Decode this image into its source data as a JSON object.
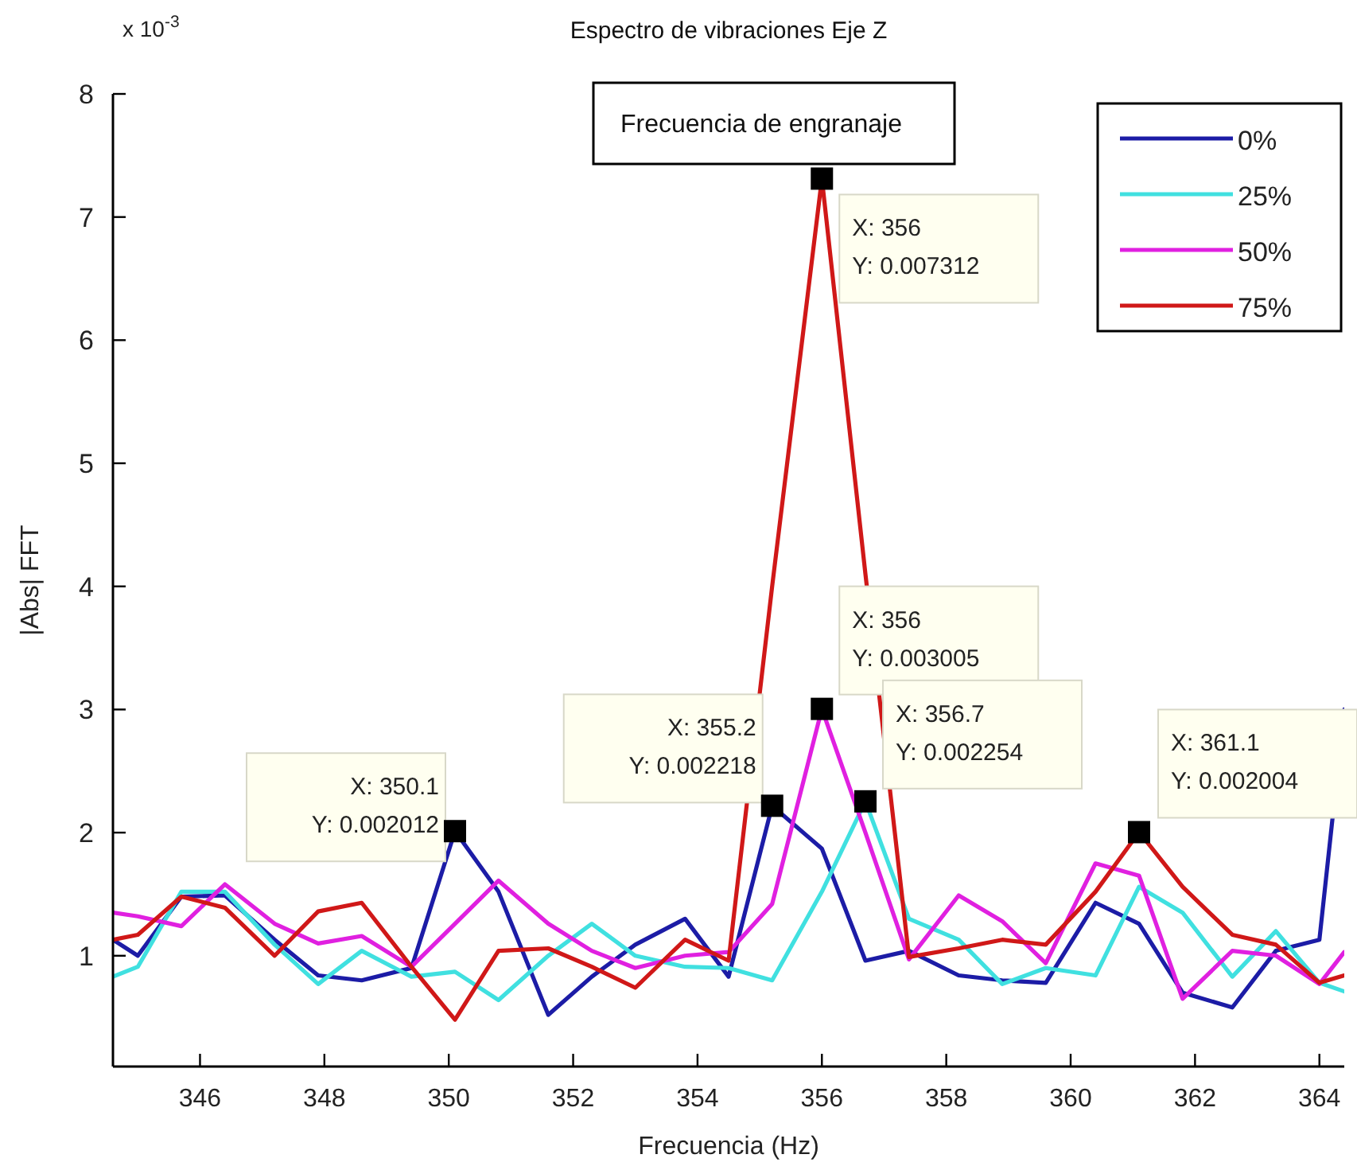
{
  "chart_data": {
    "type": "line",
    "title": "Espectro de vibraciones Eje Z",
    "xlabel": "Frecuencia (Hz)",
    "ylabel": "|Abs| FFT",
    "x": [
      344.6,
      345.0,
      345.7,
      346.4,
      347.2,
      347.9,
      348.6,
      349.4,
      350.1,
      350.8,
      351.6,
      352.3,
      353.0,
      353.8,
      354.5,
      355.2,
      356.0,
      356.7,
      357.4,
      358.2,
      358.9,
      359.6,
      360.4,
      361.1,
      361.8,
      362.6,
      363.3,
      364.0,
      364.4
    ],
    "series": [
      {
        "name": "0%",
        "color": "#1c1ca6",
        "values": [
          1.13,
          1.0,
          1.48,
          1.49,
          1.13,
          0.84,
          0.8,
          0.9,
          2.012,
          1.52,
          0.52,
          0.83,
          1.09,
          1.3,
          0.83,
          2.218,
          1.87,
          0.96,
          1.04,
          0.84,
          0.8,
          0.78,
          1.43,
          1.26,
          0.7,
          0.58,
          1.04,
          1.13,
          3.0
        ]
      },
      {
        "name": "25%",
        "color": "#40e0e0",
        "values": [
          0.83,
          0.91,
          1.52,
          1.52,
          1.09,
          0.77,
          1.04,
          0.83,
          0.87,
          0.64,
          1.0,
          1.26,
          1.0,
          0.91,
          0.9,
          0.8,
          1.52,
          2.254,
          1.3,
          1.13,
          0.77,
          0.9,
          0.84,
          1.56,
          1.35,
          0.83,
          1.2,
          0.78,
          0.71
        ]
      },
      {
        "name": "50%",
        "color": "#e020e0",
        "values": [
          1.35,
          1.32,
          1.24,
          1.58,
          1.26,
          1.1,
          1.16,
          0.91,
          1.26,
          1.61,
          1.26,
          1.04,
          0.9,
          1.0,
          1.03,
          1.42,
          3.005,
          2.0,
          0.97,
          1.49,
          1.28,
          0.94,
          1.75,
          1.65,
          0.65,
          1.04,
          1.0,
          0.77,
          1.03
        ]
      },
      {
        "name": "75%",
        "color": "#d01818",
        "values": [
          1.13,
          1.17,
          1.48,
          1.39,
          1.0,
          1.36,
          1.43,
          0.91,
          0.48,
          1.04,
          1.06,
          0.91,
          0.74,
          1.13,
          0.96,
          4.0,
          7.312,
          4.1,
          0.99,
          1.06,
          1.13,
          1.09,
          1.52,
          2.004,
          1.56,
          1.17,
          1.09,
          0.78,
          0.84
        ]
      }
    ],
    "xlim": [
      344.6,
      364.4
    ],
    "xticks": [
      346,
      348,
      350,
      352,
      354,
      356,
      358,
      360,
      362,
      364
    ],
    "ylim": [
      0.1,
      8
    ],
    "yticks": [
      1,
      2,
      3,
      4,
      5,
      6,
      7,
      8
    ],
    "legend": "top right",
    "annotations": [
      {
        "text": "X: 350.1\nY: 0.002012",
        "x": 350.1,
        "y": 2.012
      },
      {
        "text": "X: 355.2\nY: 0.002218",
        "x": 355.2,
        "y": 2.218
      },
      {
        "text": "X: 356\nY: 0.003005",
        "x": 356.0,
        "y": 3.005
      },
      {
        "text": "X: 356.7\nY: 0.002254",
        "x": 356.7,
        "y": 2.254
      },
      {
        "text": "X: 361.1\nY: 0.002004",
        "x": 361.1,
        "y": 2.004
      },
      {
        "text": "X: 356\nY: 0.007312",
        "x": 356.0,
        "y": 7.312
      },
      "Frecuencia de engranaje",
      "x 10$^{-3}$"
    ]
  }
}
